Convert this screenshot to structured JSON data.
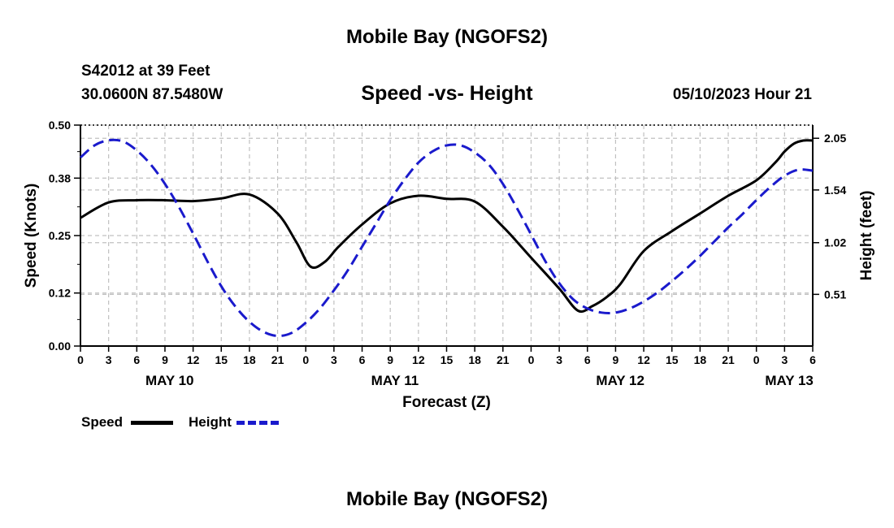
{
  "title": "Mobile Bay (NGOFS2)",
  "station": "S42012 at 39 Feet",
  "coordinates": "30.0600N  87.5480W",
  "subtitle": "Speed -vs- Height",
  "datetime": "05/10/2023 Hour 21",
  "bottom_title": "Mobile Bay (NGOFS2)",
  "legend": {
    "speed_label": "Speed",
    "height_label": "Height"
  },
  "colors": {
    "speed": "#000000",
    "height": "#1a1acc",
    "grid": "#c0c0c0"
  },
  "chart_data": {
    "type": "line",
    "title": "Speed -vs- Height",
    "xlabel": "Forecast (Z)",
    "ylabel": "Speed (Knots)",
    "y2label": "Height (feet)",
    "xlim": [
      0,
      78
    ],
    "ylim": [
      0,
      0.5
    ],
    "y2lim": [
      0,
      2.18
    ],
    "yticks": [
      0,
      0.12,
      0.25,
      0.38,
      0.5
    ],
    "ytick_labels": [
      "0.00",
      "0.12",
      "0.25",
      "0.38",
      "0.50"
    ],
    "y2ticks": [
      0.51,
      1.02,
      1.54,
      2.05
    ],
    "y2tick_labels": [
      "0.51",
      "1.02",
      "1.54",
      "2.05"
    ],
    "xticks": [
      0,
      3,
      6,
      9,
      12,
      15,
      18,
      21,
      24,
      27,
      30,
      33,
      36,
      39,
      42,
      45,
      48,
      51,
      54,
      57,
      60,
      63,
      66,
      69,
      72,
      75,
      78
    ],
    "xtick_labels": [
      "0",
      "3",
      "6",
      "9",
      "12",
      "15",
      "18",
      "21",
      "0",
      "3",
      "6",
      "9",
      "12",
      "15",
      "18",
      "21",
      "0",
      "3",
      "6",
      "9",
      "12",
      "15",
      "18",
      "21",
      "0",
      "3",
      "6"
    ],
    "day_labels": [
      {
        "x": 9.5,
        "label": "MAY 10"
      },
      {
        "x": 33.5,
        "label": "MAY 11"
      },
      {
        "x": 57.5,
        "label": "MAY 12"
      },
      {
        "x": 75.5,
        "label": "MAY 13"
      }
    ],
    "grid": true,
    "series": [
      {
        "name": "Speed",
        "axis": "left",
        "x": [
          0,
          3,
          6,
          9,
          12,
          15,
          18,
          21,
          23,
          24.5,
          26,
          27.5,
          30,
          33,
          36,
          39,
          42,
          45,
          48,
          51,
          53,
          54.5,
          56,
          57.5,
          60,
          63,
          66,
          69,
          72,
          74,
          75,
          76,
          77,
          78
        ],
        "values": [
          0.29,
          0.325,
          0.33,
          0.33,
          0.328,
          0.334,
          0.343,
          0.3,
          0.235,
          0.18,
          0.19,
          0.225,
          0.275,
          0.323,
          0.34,
          0.333,
          0.327,
          0.27,
          0.2,
          0.13,
          0.08,
          0.09,
          0.11,
          0.14,
          0.215,
          0.26,
          0.3,
          0.34,
          0.375,
          0.415,
          0.44,
          0.458,
          0.465,
          0.465
        ]
      },
      {
        "name": "Height",
        "axis": "right",
        "x": [
          0,
          1.5,
          3,
          4.5,
          6,
          7.5,
          9,
          10.5,
          12,
          13.5,
          15,
          16.5,
          18,
          19.5,
          21,
          22.5,
          24,
          25.5,
          27,
          28.5,
          30,
          31.5,
          33,
          34.5,
          36,
          37.5,
          39,
          40.5,
          42,
          43.5,
          45,
          46.5,
          48,
          49.5,
          51,
          52.5,
          54,
          55.5,
          57,
          58.5,
          60,
          61.5,
          63,
          64.5,
          66,
          67.5,
          69,
          70.5,
          72,
          73.5,
          75,
          76.5,
          78
        ],
        "values": [
          1.86,
          1.98,
          2.03,
          2.02,
          1.93,
          1.79,
          1.6,
          1.37,
          1.11,
          0.84,
          0.59,
          0.39,
          0.24,
          0.14,
          0.1,
          0.13,
          0.23,
          0.37,
          0.55,
          0.75,
          0.98,
          1.21,
          1.44,
          1.64,
          1.81,
          1.92,
          1.98,
          1.98,
          1.91,
          1.79,
          1.6,
          1.36,
          1.1,
          0.84,
          0.62,
          0.46,
          0.37,
          0.33,
          0.33,
          0.37,
          0.44,
          0.53,
          0.64,
          0.76,
          0.89,
          1.03,
          1.17,
          1.3,
          1.44,
          1.57,
          1.68,
          1.74,
          1.73
        ]
      }
    ]
  }
}
